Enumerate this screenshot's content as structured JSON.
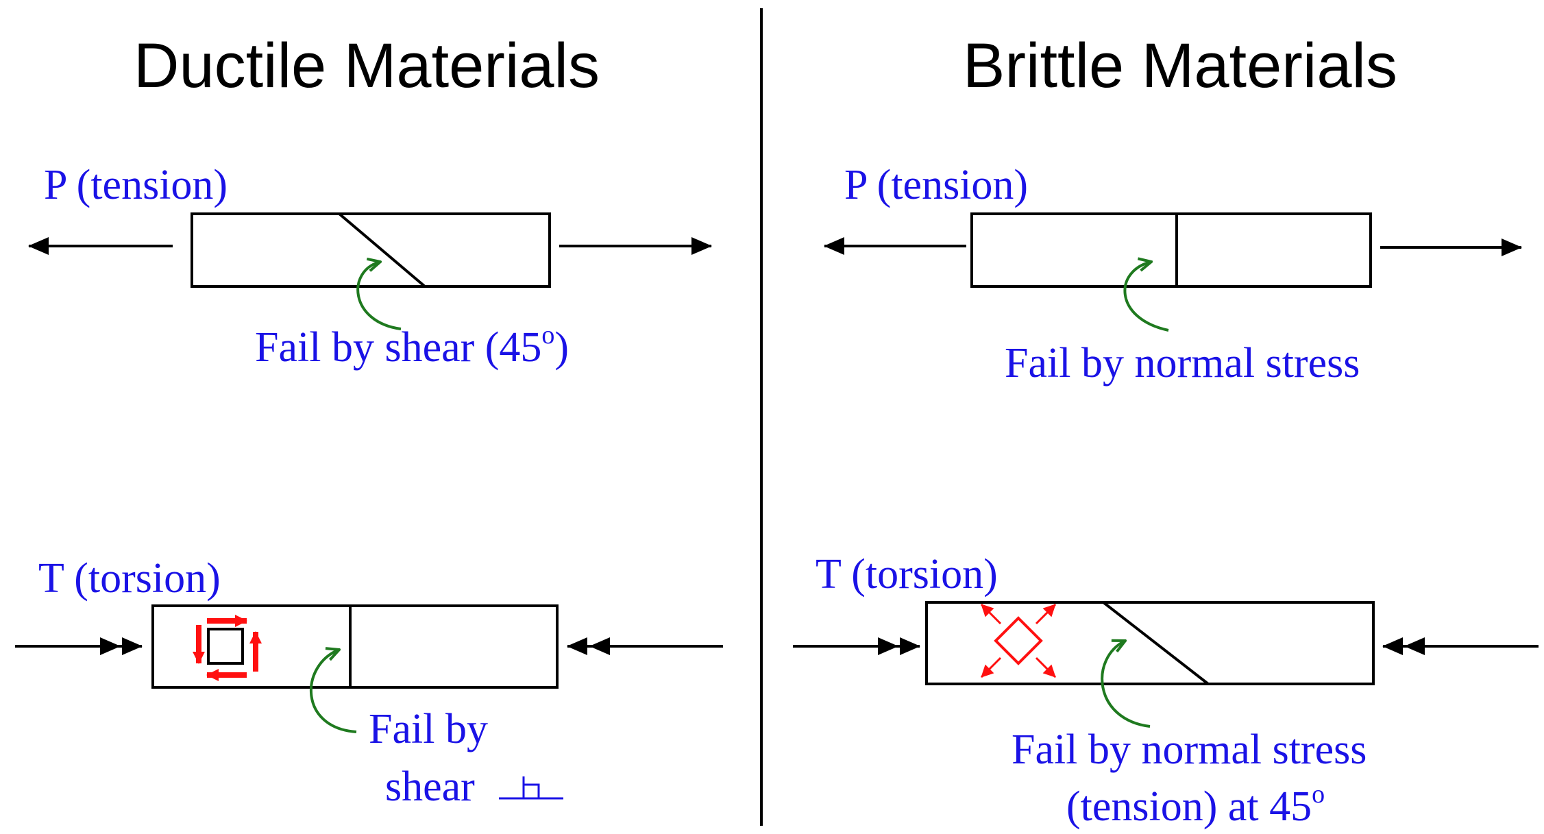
{
  "colors": {
    "label": "#1a12e6",
    "pointer": "#1f7a1f",
    "stress": "#ff1010",
    "ink": "#000000"
  },
  "ductile": {
    "title": "Ductile Materials",
    "tension_label": "P (tension)",
    "tension_fail": "Fail by shear (45",
    "tension_fail_sup": "o",
    "tension_fail_end": ")",
    "torsion_label": "T (torsion)",
    "torsion_fail_line1": "Fail by",
    "torsion_fail_line2": "shear"
  },
  "brittle": {
    "title": "Brittle Materials",
    "tension_label": "P (tension)",
    "tension_fail": "Fail by normal stress",
    "torsion_label": "T (torsion)",
    "torsion_fail_line1": "Fail by normal stress",
    "torsion_fail_line2": "(tension) at 45",
    "torsion_fail_sup": "o"
  }
}
